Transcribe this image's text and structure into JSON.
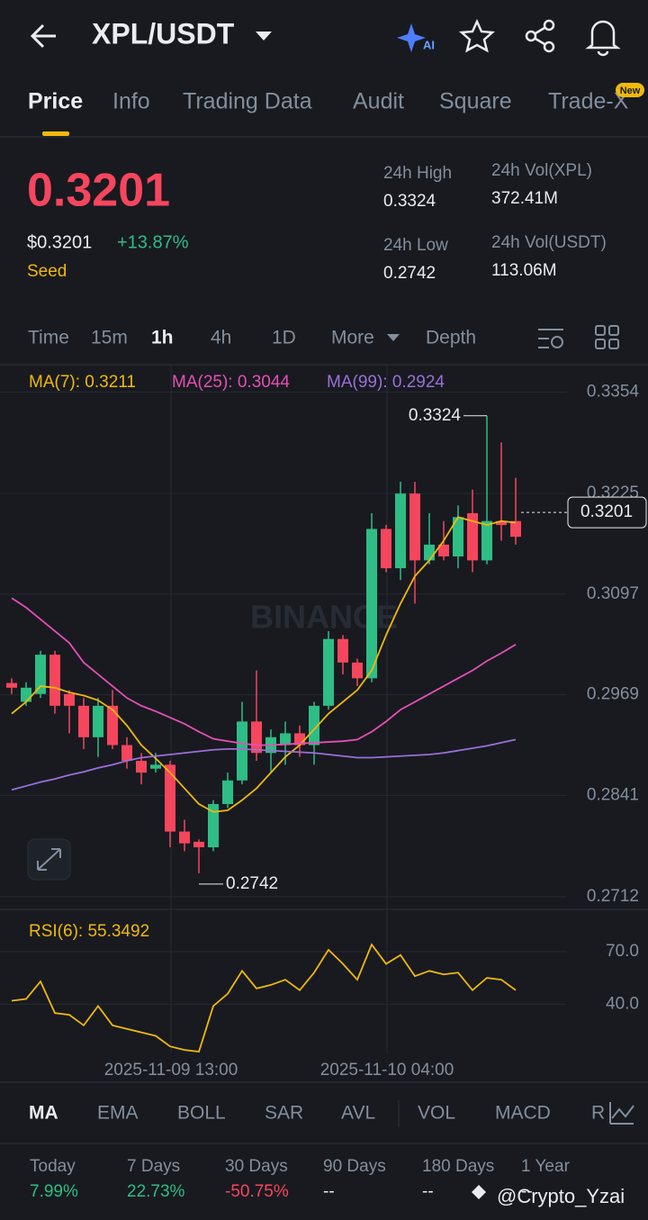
{
  "header": {
    "pair": "XPL/USDT"
  },
  "tabs": [
    "Price",
    "Info",
    "Trading Data",
    "Audit",
    "Square",
    "Trade-X"
  ],
  "new_badge": "New",
  "price": {
    "last": "0.3201",
    "usd": "$0.3201",
    "change": "+13.87%",
    "tag": "Seed"
  },
  "stats": [
    {
      "label": "24h High",
      "value": "0.3324"
    },
    {
      "label": "24h Vol(XPL)",
      "value": "372.41M"
    },
    {
      "label": "24h Low",
      "value": "0.2742"
    },
    {
      "label": "24h Vol(USDT)",
      "value": "113.06M"
    }
  ],
  "timeframes": [
    "Time",
    "15m",
    "1h",
    "4h",
    "1D",
    "More",
    "Depth"
  ],
  "watermark": "BINANCE",
  "chart_data": [
    {
      "type": "candlestick",
      "categories": [
        null,
        null,
        null,
        null,
        null,
        null,
        null,
        null,
        null,
        null,
        null,
        "2025-11-09 13:00",
        null,
        null,
        null,
        null,
        null,
        null,
        null,
        null,
        null,
        null,
        null,
        null,
        null,
        null,
        "2025-11-10 04:00",
        null,
        null,
        null,
        null,
        null,
        null,
        null,
        null,
        null
      ],
      "open": [
        0.2984,
        0.296,
        0.297,
        0.302,
        0.297,
        0.2955,
        0.2915,
        0.2955,
        0.2905,
        0.2885,
        0.2875,
        0.288,
        0.2795,
        0.2782,
        0.2775,
        0.283,
        0.286,
        0.2935,
        0.2895,
        0.2905,
        0.292,
        0.2905,
        0.2955,
        0.304,
        0.301,
        0.299,
        0.318,
        0.313,
        0.3225,
        0.314,
        0.316,
        0.3145,
        0.32,
        0.314,
        0.319,
        0.319
      ],
      "high": [
        0.299,
        0.2985,
        0.3025,
        0.3025,
        0.2975,
        0.2965,
        0.2965,
        0.2975,
        0.2915,
        0.2895,
        0.2895,
        0.2885,
        0.281,
        0.2785,
        0.2835,
        0.287,
        0.296,
        0.3,
        0.2925,
        0.2935,
        0.293,
        0.296,
        0.305,
        0.3045,
        0.3015,
        0.32,
        0.3185,
        0.324,
        0.324,
        0.32,
        0.319,
        0.321,
        0.323,
        0.3324,
        0.329,
        0.3245
      ],
      "low": [
        0.297,
        0.2955,
        0.2965,
        0.2945,
        0.292,
        0.29,
        0.289,
        0.29,
        0.2875,
        0.2855,
        0.287,
        0.2775,
        0.277,
        0.2742,
        0.277,
        0.2825,
        0.2855,
        0.2885,
        0.287,
        0.288,
        0.289,
        0.288,
        0.295,
        0.2995,
        0.298,
        0.2985,
        0.3125,
        0.3115,
        0.3085,
        0.3135,
        0.314,
        0.313,
        0.3125,
        0.3135,
        0.3165,
        0.316
      ],
      "close": [
        0.2978,
        0.2978,
        0.302,
        0.2955,
        0.2955,
        0.2915,
        0.2955,
        0.2905,
        0.2885,
        0.287,
        0.288,
        0.2795,
        0.278,
        0.2775,
        0.283,
        0.286,
        0.2935,
        0.2895,
        0.2915,
        0.292,
        0.2905,
        0.2955,
        0.304,
        0.301,
        0.299,
        0.318,
        0.313,
        0.3225,
        0.314,
        0.316,
        0.3145,
        0.3195,
        0.314,
        0.319,
        0.3185,
        0.317
      ],
      "up_color": "#2ebd85",
      "down_color": "#f6465d",
      "series": [
        {
          "name": "MA(7): 0.3211",
          "color": "#f0b90b",
          "values": [
            0.2945,
            0.296,
            0.298,
            0.2978,
            0.2972,
            0.2968,
            0.2962,
            0.295,
            0.293,
            0.2905,
            0.2888,
            0.287,
            0.285,
            0.283,
            0.282,
            0.2822,
            0.2835,
            0.285,
            0.287,
            0.289,
            0.2905,
            0.2925,
            0.2945,
            0.296,
            0.2975,
            0.3,
            0.3045,
            0.3085,
            0.312,
            0.314,
            0.3165,
            0.3195,
            0.319,
            0.3185,
            0.319,
            0.3188
          ]
        },
        {
          "name": "MA(25): 0.3044",
          "color": "#e44fb4",
          "values": [
            0.3092,
            0.308,
            0.3065,
            0.305,
            0.3035,
            0.301,
            0.2995,
            0.298,
            0.2965,
            0.2955,
            0.2948,
            0.294,
            0.2932,
            0.2922,
            0.2913,
            0.291,
            0.2907,
            0.2905,
            0.2905,
            0.2906,
            0.2907,
            0.2908,
            0.2909,
            0.291,
            0.2912,
            0.2922,
            0.2935,
            0.295,
            0.296,
            0.297,
            0.298,
            0.299,
            0.3,
            0.3012,
            0.3022,
            0.3033
          ]
        },
        {
          "name": "MA(99): 0.2924",
          "color": "#9b6fd6",
          "values": [
            0.2848,
            0.2853,
            0.2858,
            0.2862,
            0.2867,
            0.2871,
            0.2876,
            0.288,
            0.2885,
            0.2889,
            0.2891,
            0.2893,
            0.2895,
            0.2897,
            0.2899,
            0.29,
            0.29,
            0.2899,
            0.2898,
            0.2897,
            0.2896,
            0.2895,
            0.2893,
            0.2891,
            0.2889,
            0.2889,
            0.289,
            0.2891,
            0.2892,
            0.2893,
            0.2895,
            0.2898,
            0.2901,
            0.2904,
            0.2908,
            0.2912
          ]
        }
      ],
      "ylim": [
        0.2696,
        0.3389
      ],
      "yticks": [
        0.3354,
        0.3225,
        0.3097,
        0.2969,
        0.2841,
        0.2712
      ],
      "last_price": 0.3201,
      "high_mark": 0.3324,
      "low_mark": 0.2742,
      "grid": true
    },
    {
      "type": "line",
      "title": "RSI(6): 55.3492",
      "color": "#f0b90b",
      "values": [
        42,
        43,
        53,
        35,
        34,
        28,
        39,
        28,
        26,
        24,
        22,
        16,
        14,
        13,
        39,
        46,
        59,
        49,
        51,
        54,
        48,
        58,
        71,
        63,
        54,
        74,
        63,
        68,
        56,
        59,
        57,
        58,
        48,
        55,
        54,
        48
      ],
      "ylim": [
        12,
        93
      ],
      "yticks": [
        {
          "value": 70,
          "label": "70.0"
        },
        {
          "value": 40,
          "label": "40.0"
        }
      ]
    }
  ],
  "indicators": [
    "MA",
    "EMA",
    "BOLL",
    "SAR",
    "AVL",
    "VOL",
    "MACD",
    "R"
  ],
  "performance": [
    {
      "period": "Today",
      "value": "7.99%"
    },
    {
      "period": "7 Days",
      "value": "22.73%"
    },
    {
      "period": "30 Days",
      "value": "-50.75%"
    },
    {
      "period": "90 Days",
      "value": "--"
    },
    {
      "period": "180 Days",
      "value": "--"
    },
    {
      "period": "1 Year",
      "value": "--"
    }
  ],
  "credit": "@Crypto_Yzai"
}
